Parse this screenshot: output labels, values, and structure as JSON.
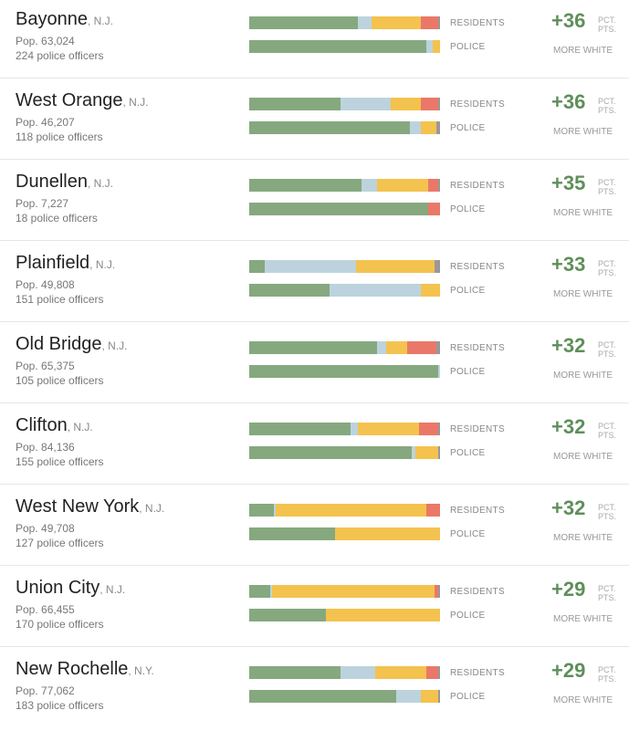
{
  "labels": {
    "residents": "RESIDENTS",
    "police": "POLICE",
    "unit_line1": "PCT.",
    "unit_line2": "PTS.",
    "more_white": "MORE WHITE"
  },
  "colors": {
    "white": "#86a87f",
    "black": "#bcd3de",
    "hispanic": "#f4c24e",
    "asian": "#ea7868",
    "other": "#999999"
  },
  "chart_data": {
    "type": "bar",
    "stacked_percent": true,
    "segment_order": [
      "white",
      "black",
      "hispanic",
      "asian",
      "other"
    ],
    "rows": [
      {
        "city": "Bayonne",
        "state": ", N.J.",
        "population": "Pop. 63,024",
        "officers": "224 police officers",
        "difference": "+36",
        "residents": [
          57,
          7,
          26,
          9,
          1
        ],
        "police": [
          93,
          3,
          4,
          0,
          0
        ]
      },
      {
        "city": "West Orange",
        "state": ", N.J.",
        "population": "Pop. 46,207",
        "officers": "118 police officers",
        "difference": "+36",
        "residents": [
          48,
          26,
          16,
          9,
          1
        ],
        "police": [
          84,
          6,
          8,
          0,
          2
        ]
      },
      {
        "city": "Dunellen",
        "state": ", N.J.",
        "population": "Pop. 7,227",
        "officers": "18 police officers",
        "difference": "+35",
        "residents": [
          59,
          8,
          27,
          5,
          1
        ],
        "police": [
          94,
          0,
          0,
          6,
          0
        ]
      },
      {
        "city": "Plainfield",
        "state": ", N.J.",
        "population": "Pop. 49,808",
        "officers": "151 police officers",
        "difference": "+33",
        "residents": [
          8,
          48,
          41,
          0,
          3
        ],
        "police": [
          42,
          48,
          10,
          0,
          0
        ]
      },
      {
        "city": "Old Bridge",
        "state": ", N.J.",
        "population": "Pop. 65,375",
        "officers": "105 police officers",
        "difference": "+32",
        "residents": [
          67,
          5,
          11,
          15,
          2
        ],
        "police": [
          99,
          1,
          0,
          0,
          0
        ]
      },
      {
        "city": "Clifton",
        "state": ", N.J.",
        "population": "Pop. 84,136",
        "officers": "155 police officers",
        "difference": "+32",
        "residents": [
          53,
          4,
          32,
          10,
          1
        ],
        "police": [
          85,
          2,
          12,
          0,
          1
        ]
      },
      {
        "city": "West New York",
        "state": ", N.J.",
        "population": "Pop. 49,708",
        "officers": "127 police officers",
        "difference": "+32",
        "residents": [
          13,
          1,
          79,
          7,
          0
        ],
        "police": [
          45,
          0,
          55,
          0,
          0
        ]
      },
      {
        "city": "Union City",
        "state": ", N.J.",
        "population": "Pop. 66,455",
        "officers": "170 police officers",
        "difference": "+29",
        "residents": [
          11,
          1,
          85,
          2,
          1
        ],
        "police": [
          40,
          0,
          60,
          0,
          0
        ]
      },
      {
        "city": "New Rochelle",
        "state": ", N.Y.",
        "population": "Pop. 77,062",
        "officers": "183 police officers",
        "difference": "+29",
        "residents": [
          48,
          18,
          27,
          6,
          1
        ],
        "police": [
          77,
          13,
          9,
          0,
          1
        ]
      }
    ]
  }
}
